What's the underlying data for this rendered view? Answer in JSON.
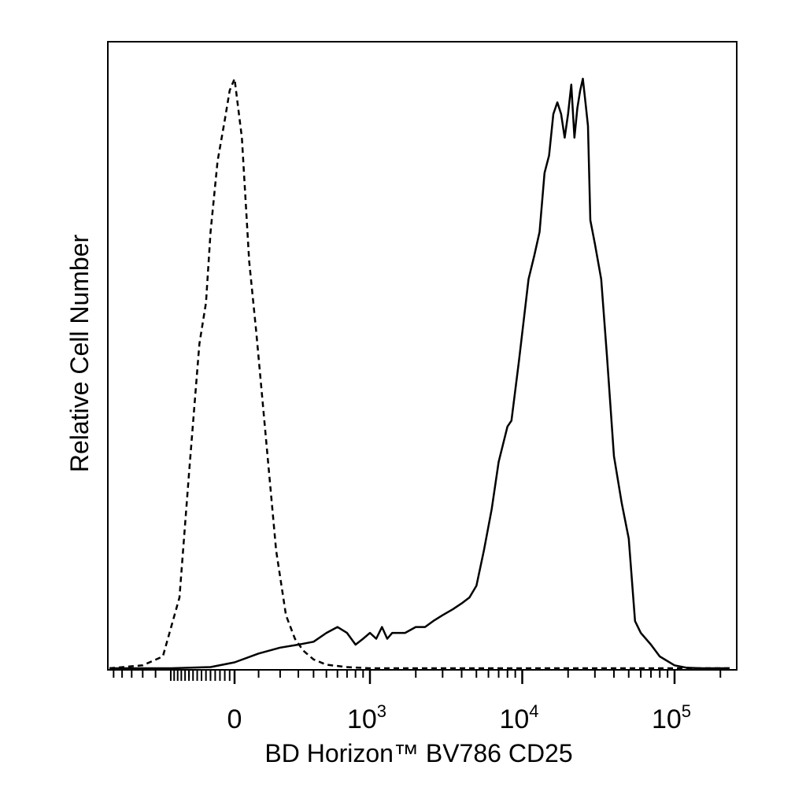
{
  "chart_data": {
    "type": "line",
    "title": "",
    "xlabel": "BD Horizon™ BV786 CD25",
    "ylabel": "Relative Cell Number",
    "x_scale": "biexponential",
    "xlim": [
      -500,
      230000
    ],
    "ylim": [
      0,
      1
    ],
    "grid": false,
    "legend": "none",
    "x_tick_labels": [
      {
        "value": 0,
        "base": "0",
        "exp": ""
      },
      {
        "value": 1000,
        "base": "10",
        "exp": "3"
      },
      {
        "value": 10000,
        "base": "10",
        "exp": "4"
      },
      {
        "value": 100000,
        "base": "10",
        "exp": "5"
      }
    ],
    "series": [
      {
        "style": "dashed",
        "color": "#000000",
        "x": [
          -1000,
          -500,
          -350,
          -250,
          -200,
          -150,
          -120,
          -100,
          -70,
          -40,
          -20,
          0,
          30,
          60,
          90,
          130,
          180,
          230,
          280,
          330,
          400,
          500,
          700,
          1000,
          3000,
          10000,
          100000,
          230000
        ],
        "y": [
          0.0,
          0.005,
          0.02,
          0.12,
          0.33,
          0.55,
          0.62,
          0.74,
          0.86,
          0.93,
          0.98,
          1.0,
          0.9,
          0.69,
          0.57,
          0.4,
          0.2,
          0.09,
          0.05,
          0.03,
          0.015,
          0.006,
          0.002,
          0.0,
          0.0,
          0.0,
          0.0,
          0.0
        ]
      },
      {
        "style": "solid",
        "color": "#000000",
        "x": [
          -1000,
          -300,
          -100,
          0,
          100,
          200,
          300,
          400,
          500,
          600,
          700,
          800,
          900,
          1000,
          1100,
          1200,
          1300,
          1400,
          1500,
          1700,
          2000,
          2300,
          2600,
          3000,
          3500,
          4000,
          4500,
          5000,
          5600,
          6300,
          7000,
          8000,
          8500,
          9500,
          11000,
          12000,
          13000,
          14000,
          15000,
          16000,
          17000,
          18000,
          19000,
          20000,
          21000,
          22000,
          23000,
          24000,
          25000,
          26000,
          27000,
          28000,
          30000,
          33000,
          36000,
          40000,
          45000,
          50000,
          55000,
          60000,
          70000,
          80000,
          100000,
          120000,
          150000,
          230000
        ],
        "y": [
          0.0,
          0.0,
          0.002,
          0.01,
          0.025,
          0.035,
          0.04,
          0.045,
          0.06,
          0.07,
          0.06,
          0.04,
          0.05,
          0.06,
          0.05,
          0.07,
          0.05,
          0.06,
          0.06,
          0.06,
          0.07,
          0.07,
          0.08,
          0.09,
          0.1,
          0.11,
          0.12,
          0.14,
          0.2,
          0.27,
          0.35,
          0.41,
          0.42,
          0.52,
          0.66,
          0.7,
          0.74,
          0.84,
          0.87,
          0.94,
          0.96,
          0.94,
          0.9,
          0.94,
          0.99,
          0.9,
          0.95,
          0.98,
          1.0,
          0.96,
          0.92,
          0.76,
          0.72,
          0.66,
          0.53,
          0.36,
          0.28,
          0.22,
          0.08,
          0.06,
          0.04,
          0.02,
          0.005,
          0.001,
          0.0,
          0.0
        ]
      }
    ]
  }
}
